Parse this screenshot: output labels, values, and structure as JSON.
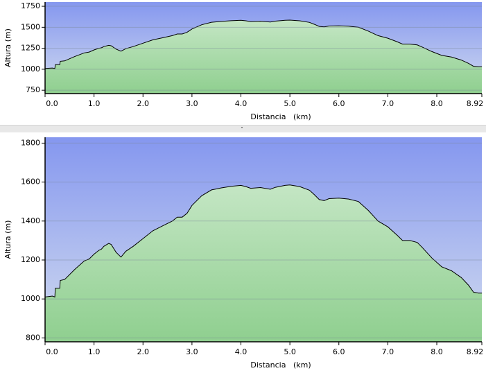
{
  "chart_data": [
    {
      "type": "area",
      "y_label": "Altura (m)",
      "x_label": "Distancia   (km)",
      "x": [
        0,
        0.15,
        0.2,
        0.21,
        0.3,
        0.31,
        0.4,
        0.6,
        0.8,
        0.9,
        1.0,
        1.1,
        1.15,
        1.2,
        1.3,
        1.35,
        1.45,
        1.55,
        1.65,
        1.8,
        2.0,
        2.2,
        2.4,
        2.6,
        2.7,
        2.8,
        2.9,
        3.0,
        3.2,
        3.4,
        3.5,
        3.6,
        3.8,
        4.0,
        4.1,
        4.2,
        4.4,
        4.6,
        4.7,
        4.9,
        5.0,
        5.2,
        5.4,
        5.5,
        5.6,
        5.7,
        5.8,
        6.0,
        6.2,
        6.4,
        6.6,
        6.8,
        7.0,
        7.2,
        7.3,
        7.45,
        7.6,
        7.7,
        7.9,
        8.1,
        8.3,
        8.5,
        8.65,
        8.75,
        8.85,
        8.92
      ],
      "values": [
        1010,
        1015,
        1010,
        1055,
        1055,
        1095,
        1100,
        1150,
        1195,
        1205,
        1230,
        1250,
        1255,
        1270,
        1285,
        1280,
        1240,
        1215,
        1245,
        1270,
        1310,
        1350,
        1375,
        1400,
        1420,
        1420,
        1440,
        1480,
        1530,
        1560,
        1565,
        1570,
        1578,
        1583,
        1577,
        1568,
        1572,
        1563,
        1573,
        1583,
        1585,
        1577,
        1558,
        1535,
        1510,
        1505,
        1515,
        1518,
        1513,
        1500,
        1455,
        1400,
        1370,
        1325,
        1300,
        1300,
        1290,
        1265,
        1210,
        1165,
        1145,
        1110,
        1070,
        1035,
        1030,
        1030
      ],
      "color": "#000000",
      "xlim": [
        0,
        8.92
      ],
      "xticks": [
        {
          "value": 0,
          "label": "0.0"
        },
        {
          "value": 1,
          "label": "1.0"
        },
        {
          "value": 2,
          "label": "2.0"
        },
        {
          "value": 3,
          "label": "3.0"
        },
        {
          "value": 4,
          "label": "4.0"
        },
        {
          "value": 5,
          "label": "5.0"
        },
        {
          "value": 6,
          "label": "6.0"
        },
        {
          "value": 7,
          "label": "7.0"
        },
        {
          "value": 8,
          "label": "8.0"
        },
        8.92
      ],
      "ylim": [
        710,
        1800
      ],
      "yticks": [
        750,
        1000,
        1250,
        1500,
        1750
      ],
      "grid": true
    },
    {
      "type": "area",
      "y_label": "Altura (m)",
      "x_label": "Distancia   (km)",
      "x": [
        0,
        0.15,
        0.2,
        0.21,
        0.3,
        0.31,
        0.4,
        0.6,
        0.8,
        0.9,
        1.0,
        1.1,
        1.15,
        1.2,
        1.3,
        1.35,
        1.45,
        1.55,
        1.65,
        1.8,
        2.0,
        2.2,
        2.4,
        2.6,
        2.7,
        2.8,
        2.9,
        3.0,
        3.2,
        3.4,
        3.5,
        3.6,
        3.8,
        4.0,
        4.1,
        4.2,
        4.4,
        4.6,
        4.7,
        4.9,
        5.0,
        5.2,
        5.4,
        5.5,
        5.6,
        5.7,
        5.8,
        6.0,
        6.2,
        6.4,
        6.6,
        6.8,
        7.0,
        7.2,
        7.3,
        7.45,
        7.6,
        7.7,
        7.9,
        8.1,
        8.3,
        8.5,
        8.65,
        8.75,
        8.85,
        8.92
      ],
      "values": [
        1010,
        1015,
        1010,
        1055,
        1055,
        1095,
        1100,
        1150,
        1195,
        1205,
        1230,
        1250,
        1255,
        1270,
        1285,
        1280,
        1240,
        1215,
        1245,
        1270,
        1310,
        1350,
        1375,
        1400,
        1420,
        1420,
        1440,
        1480,
        1530,
        1560,
        1565,
        1570,
        1578,
        1583,
        1577,
        1568,
        1572,
        1563,
        1573,
        1583,
        1585,
        1577,
        1558,
        1535,
        1510,
        1505,
        1515,
        1518,
        1513,
        1500,
        1455,
        1400,
        1370,
        1325,
        1300,
        1300,
        1290,
        1265,
        1210,
        1165,
        1145,
        1110,
        1070,
        1035,
        1030,
        1030
      ],
      "color": "#000000",
      "xlim": [
        0,
        8.92
      ],
      "xticks": [
        {
          "value": 0,
          "label": "0.0"
        },
        {
          "value": 1,
          "label": "1.0"
        },
        {
          "value": 2,
          "label": "2.0"
        },
        {
          "value": 3,
          "label": "3.0"
        },
        {
          "value": 4,
          "label": "4.0"
        },
        {
          "value": 5,
          "label": "5.0"
        },
        {
          "value": 6,
          "label": "6.0"
        },
        {
          "value": 7,
          "label": "7.0"
        },
        {
          "value": 8,
          "label": "8.0"
        },
        8.92
      ],
      "ylim": [
        780,
        1830
      ],
      "yticks": [
        800,
        1000,
        1200,
        1400,
        1600,
        1800
      ],
      "grid": true
    }
  ]
}
